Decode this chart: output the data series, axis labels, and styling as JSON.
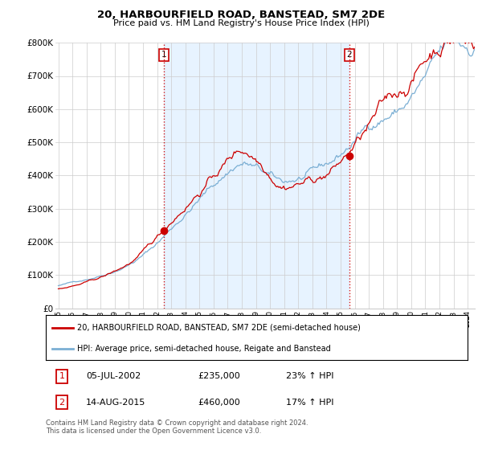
{
  "title": "20, HARBOURFIELD ROAD, BANSTEAD, SM7 2DE",
  "subtitle": "Price paid vs. HM Land Registry's House Price Index (HPI)",
  "legend_line1": "20, HARBOURFIELD ROAD, BANSTEAD, SM7 2DE (semi-detached house)",
  "legend_line2": "HPI: Average price, semi-detached house, Reigate and Banstead",
  "annotation1_date": "05-JUL-2002",
  "annotation1_price": "£235,000",
  "annotation1_hpi": "23% ↑ HPI",
  "annotation2_date": "14-AUG-2015",
  "annotation2_price": "£460,000",
  "annotation2_hpi": "17% ↑ HPI",
  "footer": "Contains HM Land Registry data © Crown copyright and database right 2024.\nThis data is licensed under the Open Government Licence v3.0.",
  "red_color": "#cc0000",
  "blue_color": "#7bafd4",
  "shade_color": "#ddeeff",
  "ylim": [
    0,
    800000
  ],
  "yticks": [
    0,
    100000,
    200000,
    300000,
    400000,
    500000,
    600000,
    700000,
    800000
  ],
  "ytick_labels": [
    "£0",
    "£100K",
    "£200K",
    "£300K",
    "£400K",
    "£500K",
    "£600K",
    "£700K",
    "£800K"
  ],
  "sale1_x": 2002.5,
  "sale1_price": 235000,
  "sale2_x": 2015.62,
  "sale2_price": 460000,
  "vline1_x": 2002.5,
  "vline2_x": 2015.62,
  "xmin": 1994.8,
  "xmax": 2024.5
}
